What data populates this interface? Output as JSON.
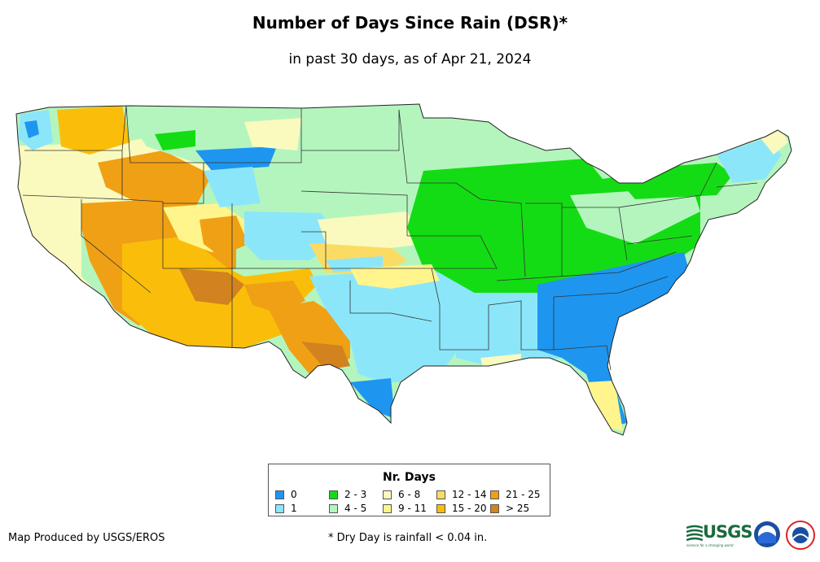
{
  "title": "Number of Days Since Rain (DSR)*",
  "subtitle": "in past 30 days, as of Apr 21, 2024",
  "legend": {
    "title": "Nr. Days",
    "items": [
      {
        "label": "0",
        "color": "#1e96f0"
      },
      {
        "label": "1",
        "color": "#8ce6fa"
      },
      {
        "label": "2 - 3",
        "color": "#14dc14"
      },
      {
        "label": "4 - 5",
        "color": "#b4f5be"
      },
      {
        "label": "6 - 8",
        "color": "#fafabe"
      },
      {
        "label": "9 - 11",
        "color": "#fff58c"
      },
      {
        "label": "12 - 14",
        "color": "#fadc64"
      },
      {
        "label": "15 - 20",
        "color": "#fabe0a"
      },
      {
        "label": "21 - 25",
        "color": "#f0a014"
      },
      {
        "label": "> 25",
        "color": "#d2821e"
      }
    ]
  },
  "credit": "Map Produced by USGS/EROS",
  "footnote": "* Dry Day is rainfall < 0.04 in.",
  "logos": {
    "usgs": "USGS",
    "usgs_tagline": "science for a changing world",
    "noaa": "noaa-logo-icon",
    "nws": "nws-logo-icon"
  }
}
